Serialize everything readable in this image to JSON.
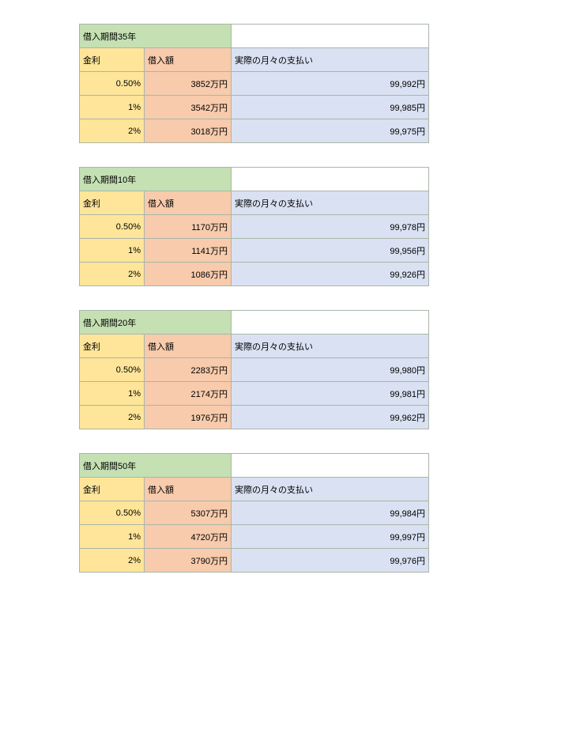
{
  "colors": {
    "border": "#aab5a9",
    "green_bg": "#c5e0b3",
    "yellow_bg": "#ffe599",
    "pink_bg": "#f7cbac",
    "blue_bg": "#d9e1f2"
  },
  "headers": {
    "interest": "金利",
    "loan_amount": "借入額",
    "monthly_payment": "実際の月々の支払い"
  },
  "tables": [
    {
      "title": "借入期間35年",
      "rows": [
        {
          "interest": "0.50%",
          "loan": "3852万円",
          "payment": "99,992円"
        },
        {
          "interest": "1%",
          "loan": "3542万円",
          "payment": "99,985円"
        },
        {
          "interest": "2%",
          "loan": "3018万円",
          "payment": "99,975円"
        }
      ]
    },
    {
      "title": "借入期間10年",
      "rows": [
        {
          "interest": "0.50%",
          "loan": "1170万円",
          "payment": "99,978円"
        },
        {
          "interest": "1%",
          "loan": "1141万円",
          "payment": "99,956円"
        },
        {
          "interest": "2%",
          "loan": "1086万円",
          "payment": "99,926円"
        }
      ]
    },
    {
      "title": "借入期間20年",
      "rows": [
        {
          "interest": "0.50%",
          "loan": "2283万円",
          "payment": "99,980円"
        },
        {
          "interest": "1%",
          "loan": "2174万円",
          "payment": "99,981円"
        },
        {
          "interest": "2%",
          "loan": "1976万円",
          "payment": "99,962円"
        }
      ]
    },
    {
      "title": "借入期間50年",
      "rows": [
        {
          "interest": "0.50%",
          "loan": "5307万円",
          "payment": "99,984円"
        },
        {
          "interest": "1%",
          "loan": "4720万円",
          "payment": "99,997円"
        },
        {
          "interest": "2%",
          "loan": "3790万円",
          "payment": "99,976円"
        }
      ]
    }
  ]
}
